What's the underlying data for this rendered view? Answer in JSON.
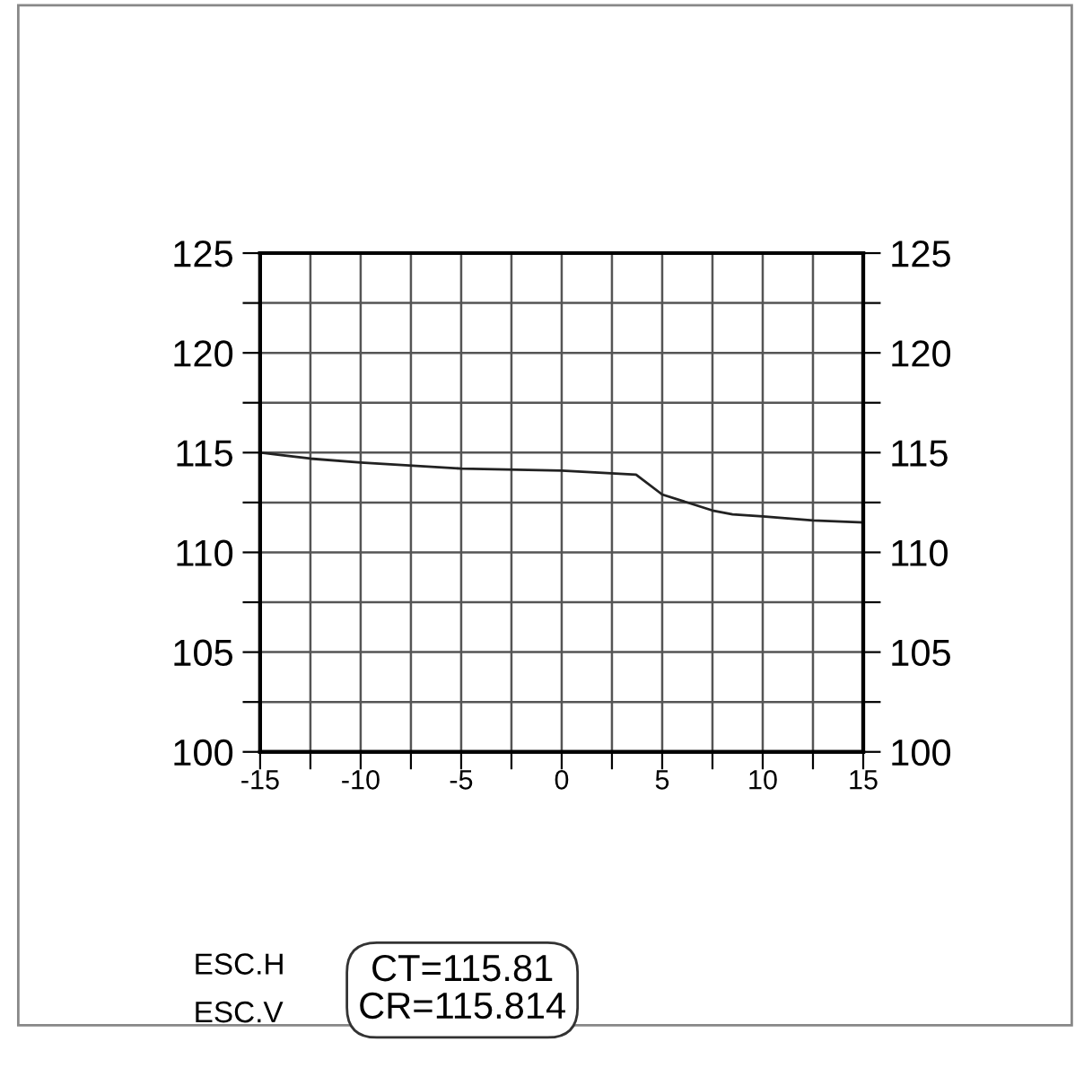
{
  "chart_data": {
    "type": "line",
    "x": [
      -15,
      -12.5,
      -10,
      -5,
      0,
      3.7,
      5,
      7.5,
      8.5,
      10,
      12.5,
      15
    ],
    "series": [
      {
        "color": "#222222",
        "values": [
          115,
          114.7,
          114.5,
          114.2,
          114.1,
          113.9,
          112.9,
          112.1,
          111.9,
          111.8,
          111.6,
          111.5
        ]
      }
    ],
    "xlim": [
      -15,
      15
    ],
    "xticks": [
      -15,
      {
        "value": -12.5,
        "label": null
      },
      -10,
      {
        "value": -7.5,
        "label": null
      },
      -5,
      {
        "value": -2.5,
        "label": null
      },
      0,
      {
        "value": 2.5,
        "label": null
      },
      5,
      {
        "value": 7.5,
        "label": null
      },
      10,
      {
        "value": 12.5,
        "label": null
      },
      15
    ],
    "ylim": [
      100,
      125
    ],
    "yticks": [
      100,
      {
        "value": 102.5,
        "label": null
      },
      105,
      {
        "value": 107.5,
        "label": null
      },
      110,
      {
        "value": 112.5,
        "label": null
      },
      115,
      {
        "value": 117.5,
        "label": null
      },
      120,
      {
        "value": 122.5,
        "label": null
      },
      125
    ],
    "y2lim": [
      100,
      125
    ],
    "y2ticks": [
      100,
      {
        "value": 102.5,
        "label": null
      },
      105,
      {
        "value": 107.5,
        "label": null
      },
      110,
      {
        "value": 112.5,
        "label": null
      },
      115,
      {
        "value": 117.5,
        "label": null
      },
      120,
      {
        "value": 122.5,
        "label": null
      },
      125
    ],
    "grid": true,
    "marker": "none",
    "line_style": "solid",
    "annotations": [
      "ESC.H",
      "ESC.V",
      "CT=115.81\nCR=115.814"
    ]
  }
}
